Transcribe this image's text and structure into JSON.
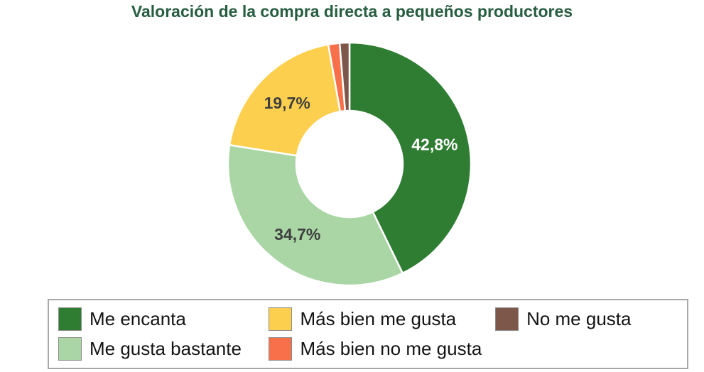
{
  "title": "Valoración de la compra directa a pequeños productores",
  "title_color": "#275d40",
  "chart_data": {
    "type": "donut",
    "title": "Valoración de la compra directa a pequeños productores",
    "legend_position": "bottom",
    "start_angle_deg": 0,
    "direction": "clockwise",
    "hole_color": "#ffffff",
    "separator_color": "#ffffff",
    "value_label_font_color_on_dark": "#ffffff",
    "value_label_font_color_on_light": "#3f3f3f",
    "series": [
      {
        "label": "Me encanta",
        "value": 42.8,
        "display_label": "42,8%",
        "color": "#2e7d32",
        "label_color": "#ffffff"
      },
      {
        "label": "Me gusta bastante",
        "value": 34.7,
        "display_label": "34,7%",
        "color": "#a9d6a4",
        "label_color": "#3f3f3f"
      },
      {
        "label": "Más bien me gusta",
        "value": 19.7,
        "display_label": "19,7%",
        "color": "#fccf4e",
        "label_color": "#3f3f3f"
      },
      {
        "label": "Más bien no me gusta",
        "value": 1.5,
        "display_label": "",
        "color": "#f8704a",
        "label_color": ""
      },
      {
        "label": "No me gusta",
        "value": 1.3,
        "display_label": "",
        "color": "#7d574a",
        "label_color": ""
      }
    ]
  }
}
